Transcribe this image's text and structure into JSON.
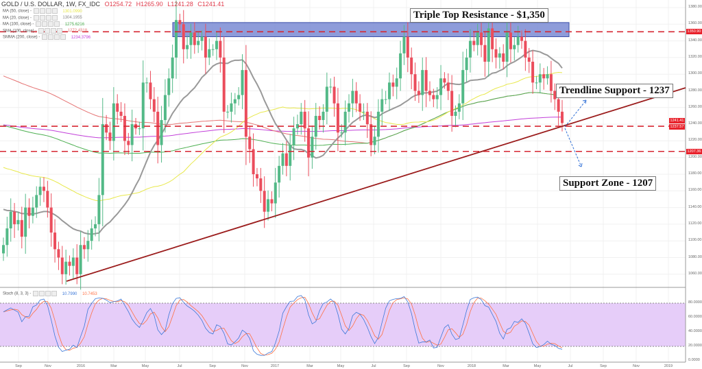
{
  "header": {
    "symbol": "GOLD / U.S. DOLLAR, 1W, FX_IDC",
    "open": "O1254.72",
    "high": "H1265.90",
    "low": "L1241.28",
    "close": "C1241.41"
  },
  "legend": [
    {
      "label": "MA (50, close)",
      "value": "1301.0990",
      "color": "#e8e84a"
    },
    {
      "label": "MA (20, close)",
      "value": "1304.1955",
      "color": "#888888"
    },
    {
      "label": "MA (100, close)",
      "value": "1275.6216",
      "color": "#4caf50"
    },
    {
      "label": "SMA (100, close)",
      "value": "1272.4318",
      "color": "#e57373"
    },
    {
      "label": "SMMA (200, close)",
      "value": "1234.3796",
      "color": "#c23fd9"
    }
  ],
  "stoch_legend": {
    "label": "Stoch (8, 3, 3)",
    "k": "10.7990",
    "d": "10.7453",
    "k_color": "#3c78d8",
    "d_color": "#ff7043"
  },
  "annotations": {
    "resistance": "Triple Top Resistance - $1,350",
    "trendline": "Trendline Support - 1237",
    "support": "Support Zone - 1207"
  },
  "price_badges": [
    "1350.90",
    "1241.41",
    "1237.57",
    "1207.36"
  ],
  "chart_data": {
    "type": "candlestick",
    "timeframe": "1W",
    "y_ticks": [
      "1380.00",
      "1360.00",
      "1340.00",
      "1320.00",
      "1300.00",
      "1280.00",
      "1260.00",
      "1240.00",
      "1220.00",
      "1200.00",
      "1180.00",
      "1160.00",
      "1140.00",
      "1120.00",
      "1100.00",
      "1080.00",
      "1060.00"
    ],
    "ylim": [
      1045,
      1389
    ],
    "x_ticks": [
      "Sep",
      "Nov",
      "2016",
      "Mar",
      "May",
      "Jul",
      "Sep",
      "Nov",
      "2017",
      "Mar",
      "May",
      "Jul",
      "Sep",
      "Nov",
      "2018",
      "Mar",
      "May",
      "Jul",
      "Sep",
      "Nov",
      "2019"
    ],
    "stoch_ticks": [
      "80.0000",
      "60.0000",
      "40.0000",
      "20.0000",
      "0.0000"
    ],
    "levels": {
      "resistance": 1350.9,
      "trendline_now": 1237.57,
      "support": 1207.36,
      "last": 1241.41
    },
    "resistance_zone": [
      1345,
      1362
    ],
    "trendline": {
      "from": [
        "2015-12",
        1052
      ],
      "to": [
        "2019-01",
        1282
      ]
    },
    "weekly_closes": [
      {
        "month": "2015-08",
        "c": [
          1095,
          1115,
          1135,
          1120
        ]
      },
      {
        "month": "2015-09",
        "c": [
          1125,
          1105,
          1140,
          1130
        ]
      },
      {
        "month": "2015-10",
        "c": [
          1140,
          1155,
          1165,
          1160,
          1140
        ]
      },
      {
        "month": "2015-11",
        "c": [
          1110,
          1090,
          1080,
          1060
        ]
      },
      {
        "month": "2015-12",
        "c": [
          1075,
          1070,
          1080,
          1060
        ]
      },
      {
        "month": "2016-01",
        "c": [
          1095,
          1090,
          1100,
          1115,
          1120
        ]
      },
      {
        "month": "2016-02",
        "c": [
          1155,
          1240,
          1230,
          1220
        ]
      },
      {
        "month": "2016-03",
        "c": [
          1265,
          1255,
          1250,
          1220
        ]
      },
      {
        "month": "2016-04",
        "c": [
          1215,
          1240,
          1235,
          1235,
          1290
        ]
      },
      {
        "month": "2016-05",
        "c": [
          1290,
          1270,
          1255,
          1215
        ]
      },
      {
        "month": "2016-06",
        "c": [
          1245,
          1275,
          1295,
          1320
        ]
      },
      {
        "month": "2016-07",
        "c": [
          1365,
          1360,
          1330,
          1335,
          1350
        ]
      },
      {
        "month": "2016-08",
        "c": [
          1335,
          1340,
          1345,
          1320
        ]
      },
      {
        "month": "2016-09",
        "c": [
          1330,
          1330,
          1340,
          1320
        ]
      },
      {
        "month": "2016-10",
        "c": [
          1255,
          1255,
          1265,
          1270,
          1275
        ]
      },
      {
        "month": "2016-11",
        "c": [
          1305,
          1225,
          1210,
          1180
        ]
      },
      {
        "month": "2016-12",
        "c": [
          1175,
          1160,
          1135,
          1150,
          1145
        ]
      },
      {
        "month": "2017-01",
        "c": [
          1170,
          1190,
          1205,
          1190
        ]
      },
      {
        "month": "2017-02",
        "c": [
          1215,
          1235,
          1240,
          1255
        ]
      },
      {
        "month": "2017-03",
        "c": [
          1235,
          1200,
          1225,
          1250,
          1245
        ]
      },
      {
        "month": "2017-04",
        "c": [
          1255,
          1285,
          1285,
          1265
        ]
      },
      {
        "month": "2017-05",
        "c": [
          1230,
          1230,
          1255,
          1265
        ]
      },
      {
        "month": "2017-06",
        "c": [
          1280,
          1265,
          1255,
          1255,
          1240
        ]
      },
      {
        "month": "2017-07",
        "c": [
          1215,
          1225,
          1255,
          1270
        ]
      },
      {
        "month": "2017-08",
        "c": [
          1270,
          1290,
          1285,
          1295
        ]
      },
      {
        "month": "2017-09",
        "c": [
          1325,
          1345,
          1320,
          1300,
          1280
        ]
      },
      {
        "month": "2017-10",
        "c": [
          1275,
          1305,
          1280,
          1275
        ]
      },
      {
        "month": "2017-11",
        "c": [
          1270,
          1275,
          1295,
          1290
        ]
      },
      {
        "month": "2017-12",
        "c": [
          1280,
          1250,
          1255,
          1265,
          1305
        ]
      },
      {
        "month": "2018-01",
        "c": [
          1320,
          1340,
          1335,
          1350
        ]
      },
      {
        "month": "2018-02",
        "c": [
          1335,
          1315,
          1355,
          1330
        ]
      },
      {
        "month": "2018-03",
        "c": [
          1320,
          1325,
          1315,
          1350,
          1330
        ]
      },
      {
        "month": "2018-04",
        "c": [
          1335,
          1345,
          1340,
          1320
        ]
      },
      {
        "month": "2018-05",
        "c": [
          1315,
          1290,
          1290,
          1300
        ]
      },
      {
        "month": "2018-06",
        "c": [
          1295,
          1300,
          1280,
          1270,
          1255
        ]
      },
      {
        "month": "2018-07",
        "c": [
          1241.41
        ]
      }
    ]
  }
}
